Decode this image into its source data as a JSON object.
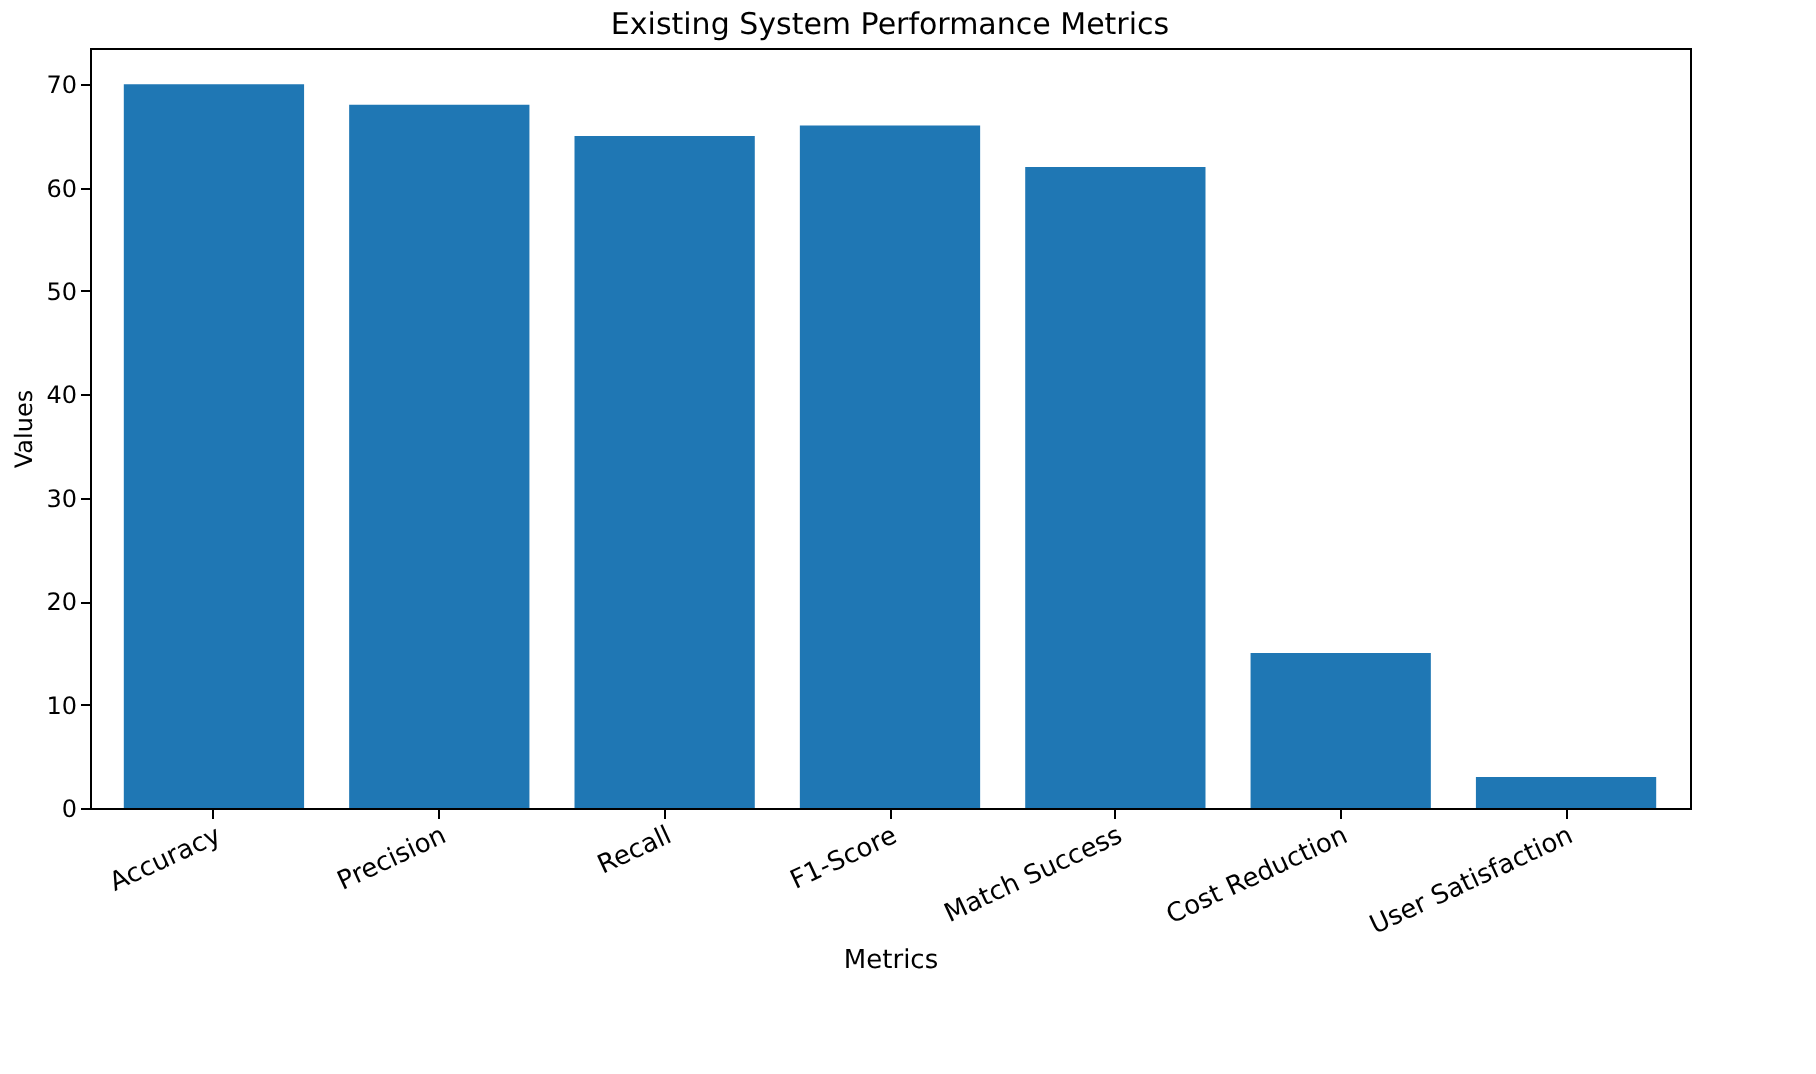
{
  "chart_data": {
    "type": "bar",
    "title": "Existing System Performance Metrics",
    "xlabel": "Metrics",
    "ylabel": "Values",
    "categories": [
      "Accuracy",
      "Precision",
      "Recall",
      "F1-Score",
      "Match Success",
      "Cost Reduction",
      "User Satisfaction"
    ],
    "values": [
      70,
      68,
      65,
      66,
      62,
      15,
      3
    ],
    "color": "#1f77b4",
    "ylim": [
      0,
      73.5
    ],
    "yticks": [
      0,
      10,
      20,
      30,
      40,
      50,
      60,
      70
    ],
    "grid": false
  }
}
